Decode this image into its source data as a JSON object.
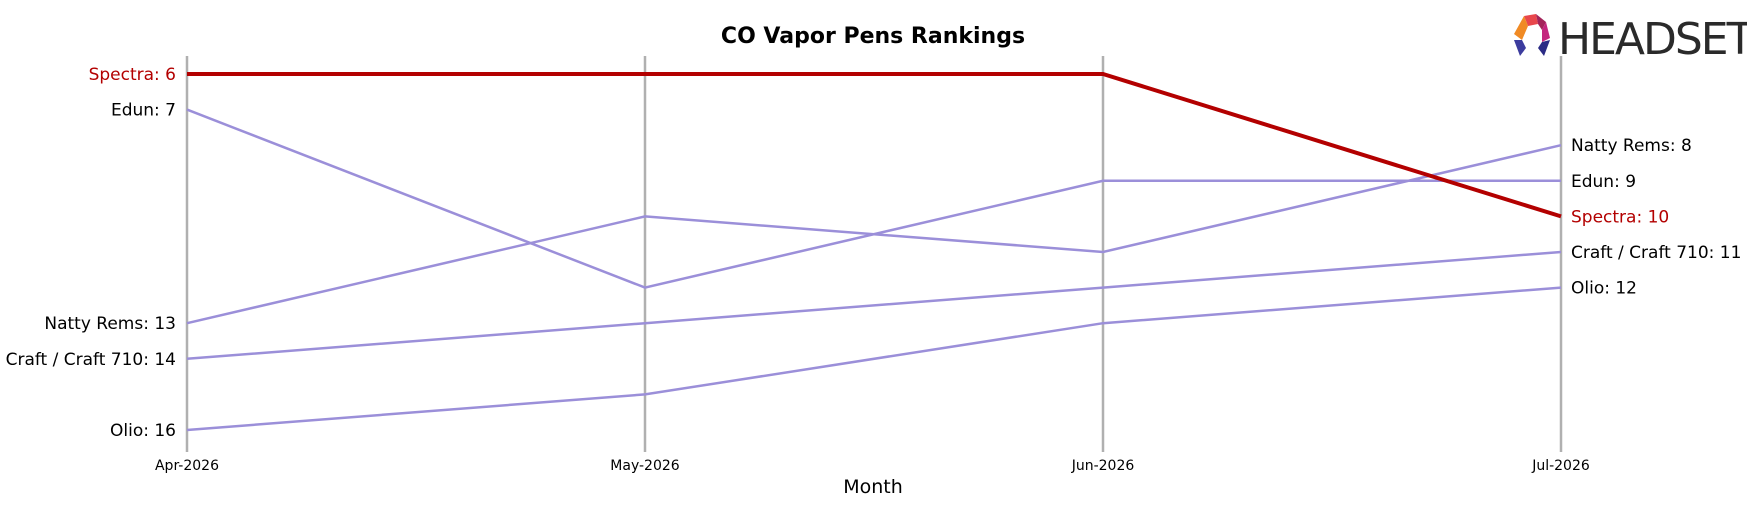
{
  "chart_data": {
    "type": "line",
    "title": "CO Vapor Pens Rankings",
    "xlabel": "Month",
    "ylabel": "",
    "categories": [
      "Apr-2026",
      "May-2026",
      "Jun-2026",
      "Jul-2026"
    ],
    "y_inverted": true,
    "ylim": [
      5.5,
      16.5
    ],
    "grid": false,
    "series": [
      {
        "name": "Edun",
        "values": [
          7,
          12,
          9,
          9
        ],
        "color": "#9b8fd9"
      },
      {
        "name": "Natty Rems",
        "values": [
          13,
          10,
          11,
          8
        ],
        "color": "#9b8fd9"
      },
      {
        "name": "Craft / Craft 710",
        "values": [
          14,
          13,
          12,
          11
        ],
        "color": "#9b8fd9"
      },
      {
        "name": "Olio",
        "values": [
          16,
          15,
          13,
          12
        ],
        "color": "#9b8fd9"
      },
      {
        "name": "Spectra",
        "values": [
          6,
          6,
          6,
          10
        ],
        "color": "#b30000",
        "highlight": true
      }
    ],
    "start_labels": [
      {
        "text": "Spectra: 6",
        "color": "#b30000"
      },
      {
        "text": "Edun: 7",
        "color": "#000000"
      },
      {
        "text": "Natty Rems: 13",
        "color": "#000000"
      },
      {
        "text": "Craft / Craft 710: 14",
        "color": "#000000"
      },
      {
        "text": "Olio: 16",
        "color": "#000000"
      }
    ],
    "end_labels": [
      {
        "text": "Natty Rems: 8",
        "color": "#000000"
      },
      {
        "text": "Edun: 9",
        "color": "#000000"
      },
      {
        "text": "Spectra: 10",
        "color": "#b30000"
      },
      {
        "text": "Craft / Craft 710: 11",
        "color": "#000000"
      },
      {
        "text": "Olio: 12",
        "color": "#000000"
      }
    ]
  },
  "logo": {
    "text": "HEADSET",
    "colors": [
      "#e8474c",
      "#a3245a",
      "#f08a24",
      "#c4267e",
      "#3c3c9e",
      "#2b2b85"
    ]
  },
  "colors": {
    "vertical_axis": "#b0b0b0",
    "highlight": "#b30000",
    "series": "#9b8fd9"
  }
}
